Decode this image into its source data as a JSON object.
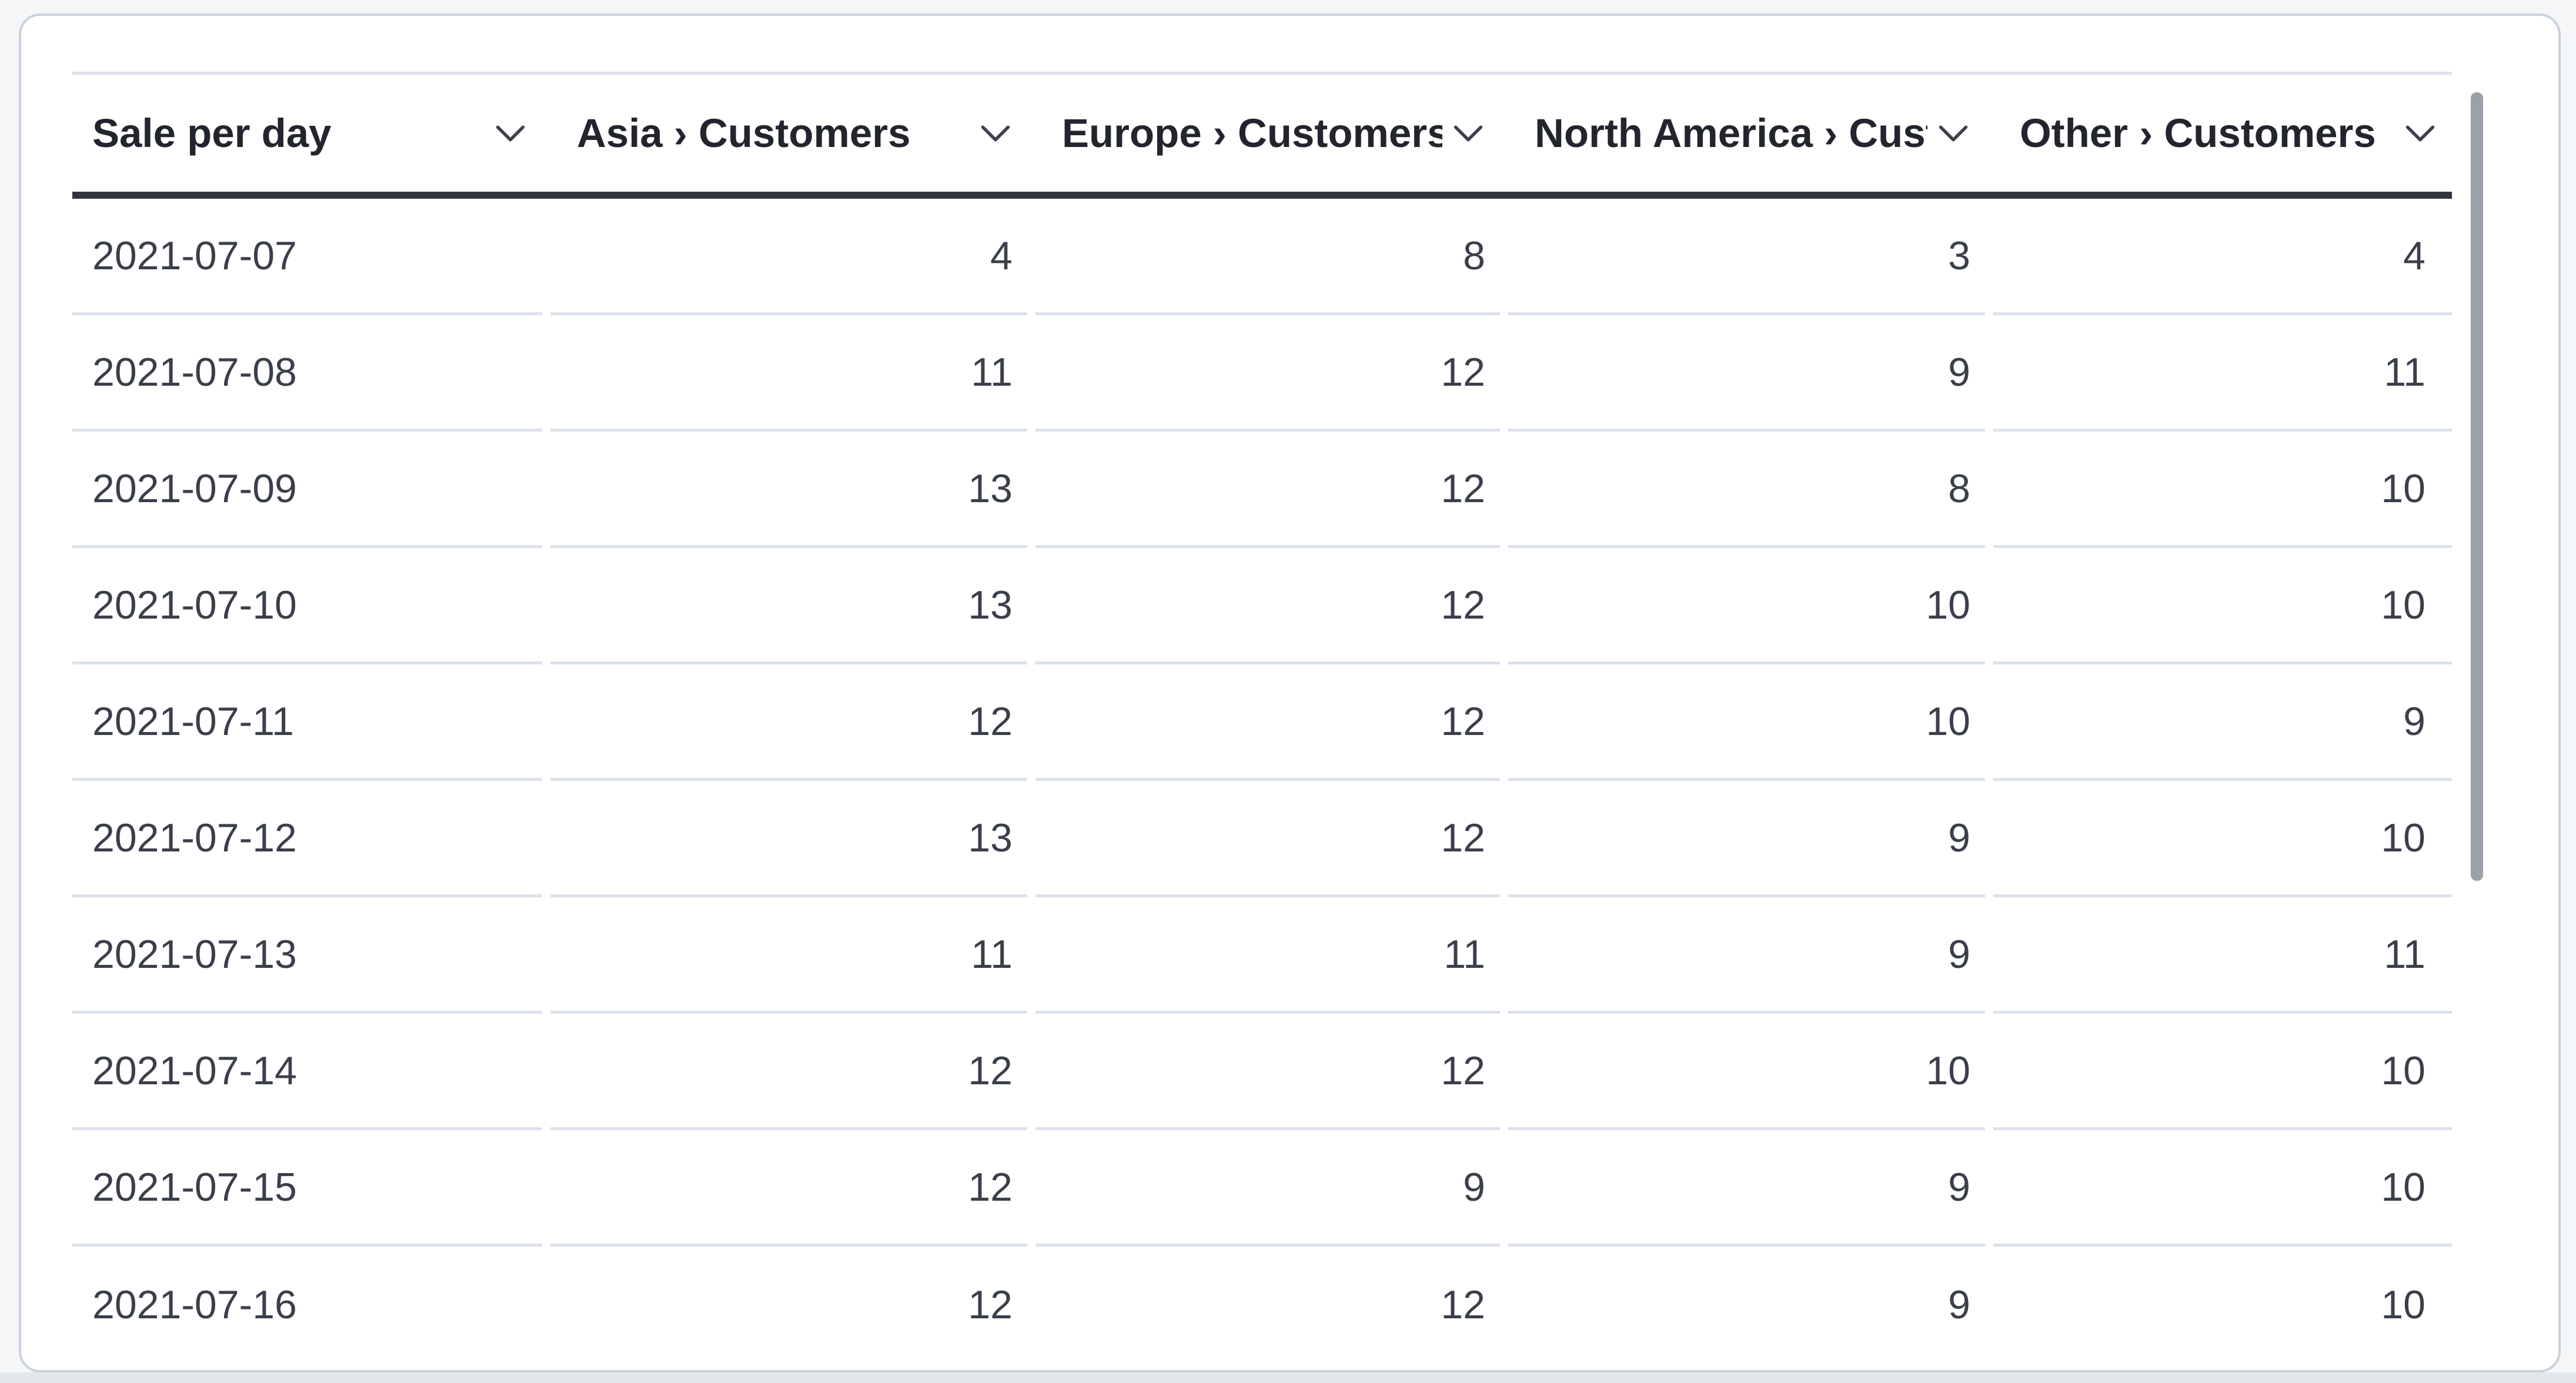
{
  "card": {
    "kind": "question-table-card"
  },
  "table": {
    "columns": [
      {
        "id": "date",
        "label": "Sale per day",
        "align": "left"
      },
      {
        "id": "asia",
        "label": "Asia › Customers",
        "align": "right"
      },
      {
        "id": "europe",
        "label": "Europe › Customers",
        "align": "right"
      },
      {
        "id": "north_america",
        "label": "North America › Customers",
        "align": "right"
      },
      {
        "id": "other",
        "label": "Other › Customers",
        "align": "right"
      }
    ],
    "rows": [
      [
        "2021-07-07",
        "4",
        "8",
        "3",
        "4"
      ],
      [
        "2021-07-08",
        "11",
        "12",
        "9",
        "11"
      ],
      [
        "2021-07-09",
        "13",
        "12",
        "8",
        "10"
      ],
      [
        "2021-07-10",
        "13",
        "12",
        "10",
        "10"
      ],
      [
        "2021-07-11",
        "12",
        "12",
        "10",
        "9"
      ],
      [
        "2021-07-12",
        "13",
        "12",
        "9",
        "10"
      ],
      [
        "2021-07-13",
        "11",
        "11",
        "9",
        "11"
      ],
      [
        "2021-07-14",
        "12",
        "12",
        "10",
        "10"
      ],
      [
        "2021-07-15",
        "12",
        "9",
        "9",
        "10"
      ],
      [
        "2021-07-16",
        "12",
        "12",
        "9",
        "10"
      ]
    ]
  },
  "scrollbar": {
    "orientation": "vertical"
  },
  "icons": {
    "header_sort": "chevron-down-icon"
  },
  "colors": {
    "page_bg": "#f4f6f8",
    "card_bg": "#ffffff",
    "card_border": "#c9d1dc",
    "header_text": "#22252d",
    "body_text": "#3a3f4a",
    "header_border": "#31353d",
    "row_divider": "#dce1ea",
    "footer_strip": "#e3e6ea",
    "scroll_thumb": "#9ba1aa",
    "chevron_stroke": "#3c414c"
  }
}
